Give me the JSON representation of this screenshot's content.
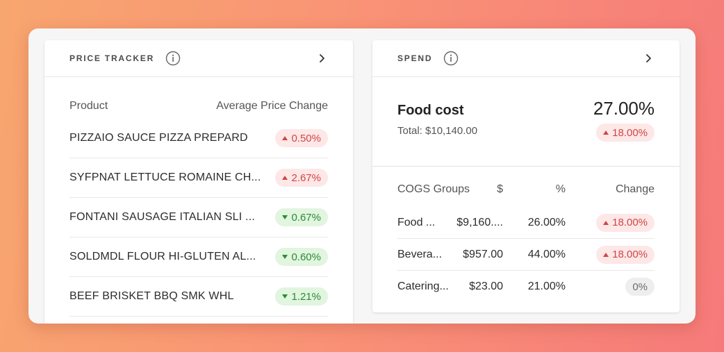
{
  "price_tracker": {
    "title": "PRICE TRACKER",
    "columns": {
      "product": "Product",
      "change": "Average Price Change"
    },
    "rows": [
      {
        "name": "PIZZAIO SAUCE PIZZA PREPARD",
        "change": "0.50%",
        "direction": "up"
      },
      {
        "name": "SYFPNAT LETTUCE ROMAINE CH...",
        "change": "2.67%",
        "direction": "up"
      },
      {
        "name": "FONTANI SAUSAGE ITALIAN SLI ...",
        "change": "0.67%",
        "direction": "down"
      },
      {
        "name": "SOLDMDL FLOUR HI-GLUTEN AL...",
        "change": "0.60%",
        "direction": "down"
      },
      {
        "name": "BEEF BRISKET BBQ SMK WHL",
        "change": "1.21%",
        "direction": "down"
      }
    ]
  },
  "spend": {
    "title": "SPEND",
    "summary": {
      "label": "Food cost",
      "total": "Total: $10,140.00",
      "percent": "27.00%",
      "change": "18.00%",
      "direction": "up"
    },
    "columns": {
      "group": "COGS Groups",
      "dollars": "$",
      "percent": "%",
      "change": "Change"
    },
    "rows": [
      {
        "group": "Food ...",
        "dollars": "$9,160....",
        "percent": "26.00%",
        "change": "18.00%",
        "direction": "up"
      },
      {
        "group": "Bevera...",
        "dollars": "$957.00",
        "percent": "44.00%",
        "change": "18.00%",
        "direction": "up"
      },
      {
        "group": "Catering...",
        "dollars": "$23.00",
        "percent": "21.00%",
        "change": "0%",
        "direction": "flat"
      }
    ]
  },
  "icons": {
    "info": "info-icon",
    "chevron": "chevron-right-icon"
  },
  "colors": {
    "up": "#d14545",
    "down": "#2e8a36",
    "flat": "#6d6d6d"
  }
}
